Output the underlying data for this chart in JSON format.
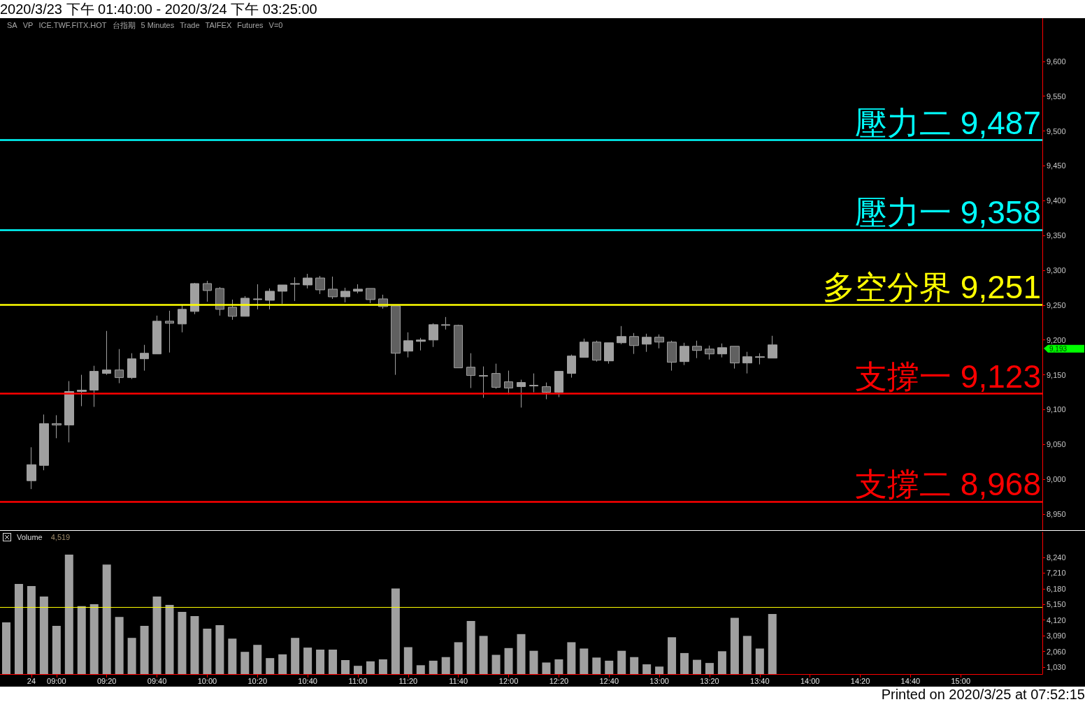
{
  "chart_data": [
    {
      "type": "candlestick",
      "title": "2020/3/23 下午 01:40:00 - 2020/3/24 下午 03:25:00",
      "annotations": [
        "SA",
        "VP",
        "ICE.TWF.FITX.HOT",
        "台指期",
        "5 Minutes",
        "Trade",
        "TAIFEX",
        "Futures",
        "V=0",
        "9,193"
      ],
      "categories": [
        null,
        null,
        null,
        null,
        null,
        null,
        null,
        null,
        null,
        null,
        null,
        null,
        null,
        null,
        null,
        null,
        null,
        null,
        null,
        null,
        null,
        null,
        null,
        null,
        null,
        null,
        null,
        null,
        null,
        null,
        null,
        null,
        null,
        null,
        null,
        null,
        null,
        null,
        null,
        null,
        null,
        null,
        null,
        null,
        null,
        null,
        null,
        null,
        null,
        null,
        null,
        null,
        null,
        null,
        null,
        null,
        null,
        null,
        null,
        null,
        null,
        null,
        null,
        null,
        null,
        null,
        null,
        null,
        null,
        null,
        null,
        null,
        null,
        null,
        null,
        null,
        null,
        null,
        null,
        null,
        null,
        null,
        null
      ],
      "series": [
        {
          "color": "#a0a0a0",
          "ohlc": [
            null,
            null,
            [
              8998,
              9046,
              8986,
              9021
            ],
            [
              9020,
              9093,
              9013,
              9080
            ],
            [
              9080,
              9092,
              9059,
              9078
            ],
            [
              9078,
              9141,
              9053,
              9126
            ],
            [
              9126,
              9150,
              9105,
              9128
            ],
            [
              9128,
              9163,
              9104,
              9155
            ],
            [
              9152,
              9213,
              9150,
              9157
            ],
            [
              9157,
              9187,
              9138,
              9146
            ],
            [
              9146,
              9181,
              9144,
              9173
            ],
            [
              9173,
              9193,
              9156,
              9181
            ],
            [
              9180,
              9235,
              9180,
              9227
            ],
            [
              9227,
              9242,
              9182,
              9224
            ],
            [
              9223,
              9250,
              9211,
              9244
            ],
            [
              9241,
              9282,
              9237,
              9281
            ],
            [
              9281,
              9285,
              9255,
              9271
            ],
            [
              9274,
              9276,
              9235,
              9244
            ],
            [
              9247,
              9258,
              9229,
              9234
            ],
            [
              9234,
              9263,
              9234,
              9260
            ],
            [
              9258,
              9280,
              9244,
              9259
            ],
            [
              9257,
              9274,
              9244,
              9270
            ],
            [
              9270,
              9279,
              9252,
              9279
            ],
            [
              9280,
              9290,
              9256,
              9281
            ],
            [
              9279,
              9295,
              9274,
              9289
            ],
            [
              9289,
              9292,
              9266,
              9272
            ],
            [
              9273,
              9291,
              9259,
              9262
            ],
            [
              9262,
              9275,
              9254,
              9270
            ],
            [
              9270,
              9280,
              9267,
              9273
            ],
            [
              9274,
              9274,
              9253,
              9258
            ],
            [
              9259,
              9265,
              9245,
              9248
            ],
            [
              9249,
              9249,
              9150,
              9181
            ],
            [
              9184,
              9211,
              9175,
              9199
            ],
            [
              9198,
              9203,
              9185,
              9200
            ],
            [
              9200,
              9224,
              9190,
              9222
            ],
            [
              9222,
              9233,
              9215,
              9221
            ],
            [
              9221,
              9222,
              9160,
              9160
            ],
            [
              9161,
              9181,
              9131,
              9149
            ],
            [
              9149,
              9162,
              9117,
              9148
            ],
            [
              9152,
              9166,
              9130,
              9132
            ],
            [
              9140,
              9156,
              9122,
              9131
            ],
            [
              9133,
              9143,
              9103,
              9139
            ],
            [
              9134,
              9152,
              9125,
              9135
            ],
            [
              9133,
              9139,
              9115,
              9125
            ],
            [
              9125,
              9155,
              9118,
              9155
            ],
            [
              9152,
              9179,
              9146,
              9177
            ],
            [
              9175,
              9202,
              9175,
              9197
            ],
            [
              9197,
              9199,
              9169,
              9171
            ],
            [
              9170,
              9196,
              9166,
              9196
            ],
            [
              9196,
              9220,
              9194,
              9205
            ],
            [
              9205,
              9210,
              9180,
              9192
            ],
            [
              9194,
              9209,
              9183,
              9204
            ],
            [
              9204,
              9208,
              9188,
              9197
            ],
            [
              9197,
              9199,
              9156,
              9168
            ],
            [
              9169,
              9196,
              9164,
              9191
            ],
            [
              9191,
              9199,
              9174,
              9185
            ],
            [
              9187,
              9192,
              9172,
              9180
            ],
            [
              9180,
              9195,
              9175,
              9189
            ],
            [
              9191,
              9191,
              9159,
              9167
            ],
            [
              9167,
              9183,
              9152,
              9176
            ],
            [
              9175,
              9181,
              9165,
              9176
            ],
            [
              9174,
              9206,
              9174,
              9193
            ],
            null,
            null,
            null,
            null,
            null,
            null,
            null,
            null,
            null,
            null,
            null,
            null,
            null,
            null,
            null,
            null,
            null,
            null,
            null,
            null,
            null
          ]
        }
      ],
      "ylim": [
        8927,
        9662
      ],
      "yticks": [
        {
          "value": 8950,
          "label": "8,950"
        },
        {
          "value": 9000,
          "label": "9,000"
        },
        {
          "value": 9050,
          "label": "9,050"
        },
        {
          "value": 9100,
          "label": "9,100"
        },
        {
          "value": 9150,
          "label": "9,150"
        },
        {
          "value": 9200,
          "label": "9,200"
        },
        {
          "value": 9250,
          "label": "9,250"
        },
        {
          "value": 9300,
          "label": "9,300"
        },
        {
          "value": 9350,
          "label": "9,350"
        },
        {
          "value": 9400,
          "label": "9,400"
        },
        {
          "value": 9450,
          "label": "9,450"
        },
        {
          "value": 9500,
          "label": "9,500"
        },
        {
          "value": 9550,
          "label": "9,550"
        },
        {
          "value": 9600,
          "label": "9,600"
        }
      ],
      "ref_lines": [
        {
          "axis": "y",
          "value": 9487,
          "label": "壓力二 9,487",
          "color": "#00ffff"
        },
        {
          "axis": "y",
          "value": 9358,
          "label": "壓力一 9,358",
          "color": "#00ffff"
        },
        {
          "axis": "y",
          "value": 9251,
          "label": "多空分界 9,251",
          "color": "#ffff00"
        },
        {
          "axis": "y",
          "value": 9123,
          "label": "支撐一 9,123",
          "color": "#ff0000"
        },
        {
          "axis": "y",
          "value": 8968,
          "label": "支撐二 8,968",
          "color": "#ff0000"
        }
      ],
      "tick_labels": "y"
    },
    {
      "type": "bar",
      "title": "Volume",
      "annotations": [
        "4,519",
        "Printed on 2020/3/25 at 07:52:15"
      ],
      "categories": [
        null,
        null,
        "24",
        null,
        "09:00",
        null,
        null,
        null,
        "09:20",
        null,
        null,
        null,
        "09:40",
        null,
        null,
        null,
        "10:00",
        null,
        null,
        null,
        "10:20",
        null,
        null,
        null,
        "10:40",
        null,
        null,
        null,
        "11:00",
        null,
        null,
        null,
        "11:20",
        null,
        null,
        null,
        "11:40",
        null,
        null,
        null,
        "12:00",
        null,
        null,
        null,
        "12:20",
        null,
        null,
        null,
        "12:40",
        null,
        null,
        null,
        "13:00",
        null,
        null,
        null,
        "13:20",
        null,
        null,
        null,
        "13:40",
        null,
        null,
        null,
        "14:00",
        null,
        null,
        null,
        "14:20",
        null,
        null,
        null,
        "14:40",
        null,
        null,
        null,
        "15:00",
        null,
        null,
        null,
        null,
        null,
        null
      ],
      "series": [
        {
          "color": "#a0a0a0",
          "values": [
            3965,
            6491,
            6360,
            5671,
            3736,
            8426,
            5031,
            5162,
            7770,
            4326,
            2948,
            3736,
            5671,
            5113,
            4654,
            4375,
            3555,
            3785,
            2899,
            2030,
            2489,
            1620,
            1866,
            2948,
            2309,
            2178,
            2178,
            1489,
            1112,
            1407,
            1538,
            6190,
            2337,
            1151,
            1448,
            1685,
            2663,
            4056,
            3078,
            1833,
            2278,
            3196,
            2100,
            1329,
            1537,
            2663,
            2248,
            1655,
            1448,
            2100,
            1685,
            1210,
            1062,
            2989,
            1952,
            1507,
            1299,
            2070,
            4263,
            3078,
            2248,
            4519,
            null,
            null,
            null,
            null,
            null,
            null,
            null,
            null,
            null,
            null,
            null,
            null,
            null,
            null,
            null,
            null,
            null,
            null,
            null,
            null,
            null
          ]
        }
      ],
      "ylim": [
        570,
        9890
      ],
      "yticks": [
        {
          "value": 1030,
          "label": "1,030"
        },
        {
          "value": 2060,
          "label": "2,060"
        },
        {
          "value": 3090,
          "label": "3,090"
        },
        {
          "value": 4120,
          "label": "4,120"
        },
        {
          "value": 5150,
          "label": "5,150"
        },
        {
          "value": 6180,
          "label": "6,180"
        },
        {
          "value": 7210,
          "label": "7,210"
        },
        {
          "value": 8240,
          "label": "8,240"
        }
      ],
      "ref_lines": [
        {
          "axis": "y",
          "value": 4980,
          "color": "#ffff00"
        }
      ]
    }
  ]
}
